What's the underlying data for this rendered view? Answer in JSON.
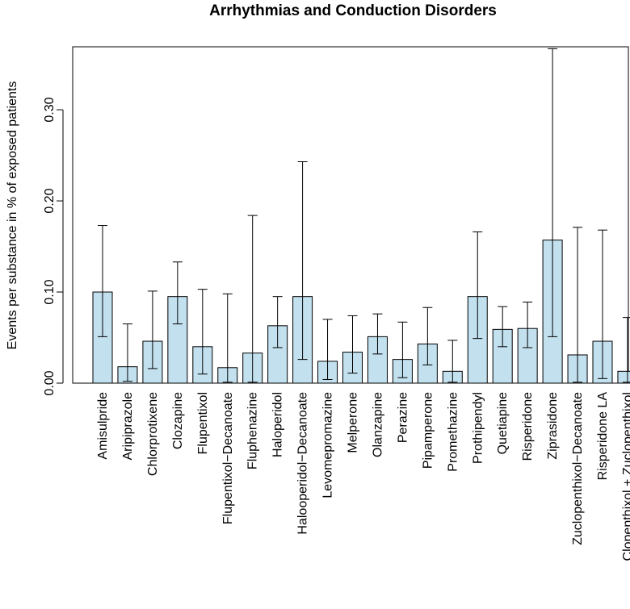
{
  "chart_data": {
    "type": "bar",
    "title": "Arrhythmias and Conduction Disorders",
    "xlabel": "",
    "ylabel": "Events per substance in % of exposed patients",
    "ylim": [
      0,
      0.37
    ],
    "yticks": [
      "0.00",
      "0.10",
      "0.20",
      "0.30"
    ],
    "ytick_values": [
      0,
      0.1,
      0.2,
      0.3
    ],
    "bar_color": "#c2e0ee",
    "categories": [
      "Amisulpride",
      "Aripiprazole",
      "Chlorprotixene",
      "Clozapine",
      "Flupentixol",
      "Flupentixol−Decanoate",
      "Fluphenazine",
      "Haloperidol",
      "Halooperidol−Decanoate",
      "Levomepromazine",
      "Melperone",
      "Olanzapine",
      "Perazine",
      "Pipamperone",
      "Promethazine",
      "Prothipendyl",
      "Quetiapine",
      "Risperidone",
      "Ziprasidone",
      "Zuclopenthixol−Decanoate",
      "Risperidone LA",
      "Clopenthixol + Zuclopenthixol"
    ],
    "values": [
      0.1,
      0.018,
      0.046,
      0.095,
      0.04,
      0.017,
      0.033,
      0.063,
      0.095,
      0.024,
      0.034,
      0.051,
      0.026,
      0.043,
      0.013,
      0.095,
      0.059,
      0.06,
      0.157,
      0.031,
      0.046,
      0.013
    ],
    "ci_low": [
      0.051,
      0.002,
      0.016,
      0.065,
      0.01,
      0.001,
      0.001,
      0.039,
      0.026,
      0.004,
      0.011,
      0.032,
      0.006,
      0.02,
      0.001,
      0.049,
      0.04,
      0.039,
      0.051,
      0.001,
      0.005,
      0.001
    ],
    "ci_high": [
      0.173,
      0.065,
      0.101,
      0.133,
      0.103,
      0.098,
      0.184,
      0.095,
      0.243,
      0.07,
      0.074,
      0.076,
      0.067,
      0.083,
      0.047,
      0.166,
      0.084,
      0.089,
      0.367,
      0.171,
      0.168,
      0.072
    ]
  }
}
